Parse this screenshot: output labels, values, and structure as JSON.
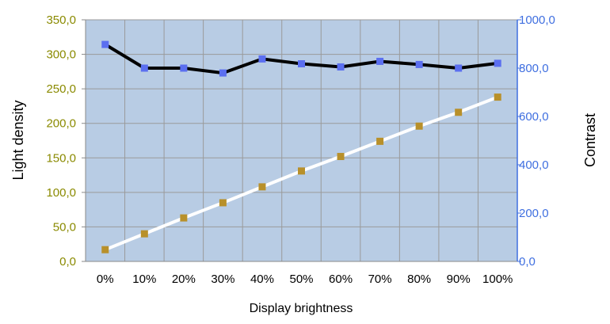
{
  "chart_data": {
    "type": "line",
    "categories": [
      "0%",
      "10%",
      "20%",
      "30%",
      "40%",
      "50%",
      "60%",
      "70%",
      "80%",
      "90%",
      "100%"
    ],
    "xlabel": "Display brightness",
    "y_left": {
      "label": "Light density",
      "ticks": [
        "0,0",
        "50,0",
        "100,0",
        "150,0",
        "200,0",
        "250,0",
        "300,0",
        "350,0"
      ],
      "ylim": [
        0,
        350
      ],
      "color": "#8a8a00"
    },
    "y_right": {
      "label": "Contrast",
      "ticks": [
        "0,0",
        "200,0",
        "400,0",
        "600,0",
        "800,0",
        "1000,0"
      ],
      "ylim": [
        0,
        1000
      ],
      "color": "#3f6fe0"
    },
    "series": [
      {
        "axis": "left",
        "line_color": "#ffffff",
        "marker_color": "#b8902a",
        "values": [
          17,
          40,
          63,
          85,
          108,
          131,
          152,
          174,
          196,
          216,
          238
        ]
      },
      {
        "axis": "right",
        "line_color": "#000000",
        "marker_color": "#5b6ff0",
        "values": [
          898,
          800,
          800,
          780,
          838,
          818,
          805,
          828,
          815,
          800,
          820
        ]
      }
    ],
    "grid": true,
    "plot_background": "#b8cce4"
  }
}
